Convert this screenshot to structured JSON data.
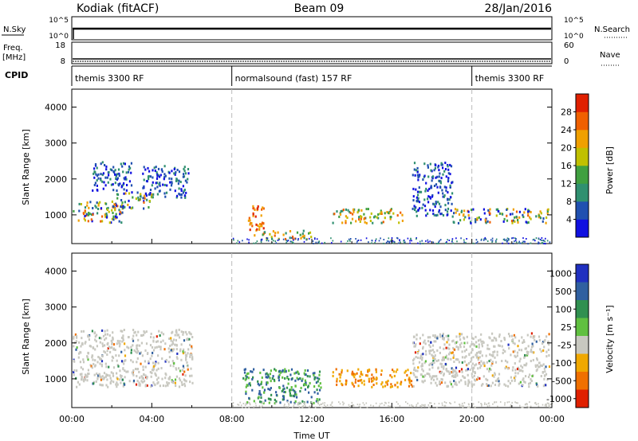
{
  "header": {
    "station": "Kodiak (fitACF)",
    "beam": "Beam 09",
    "date": "28/Jan/2016"
  },
  "strips": {
    "nsky_label": "N.Sky",
    "nsearch_label": "N.Search",
    "freq_label_1": "Freq.",
    "freq_label_2": "[MHz]",
    "nave_label": "Nave",
    "cpid_label": "CPID",
    "nsky_ticks": [
      "10^5",
      "10^0"
    ],
    "nsearch_ticks": [
      "10^5",
      "10^0"
    ],
    "freq_ticks": [
      "18",
      "8"
    ],
    "nave_ticks": [
      "60",
      "0"
    ]
  },
  "cpid_segments": [
    {
      "label": "themis 3300 RF",
      "start_h": 0,
      "end_h": 8
    },
    {
      "label": "normalsound (fast) 157 RF",
      "start_h": 8,
      "end_h": 20
    },
    {
      "label": "themis 3300 RF",
      "start_h": 20,
      "end_h": 24
    }
  ],
  "chart_data": [
    {
      "type": "heatmap",
      "panel": "power",
      "ylabel": "Slant Range [km]",
      "xlabel": "",
      "xlim": [
        0,
        24
      ],
      "ylim": [
        200,
        4500
      ],
      "yticks": [
        1000,
        2000,
        3000,
        4000
      ],
      "colorbar": {
        "label": "Power [dB]",
        "ticks": [
          "28",
          "24",
          "20",
          "16",
          "12",
          "8",
          "4"
        ],
        "tick_values": [
          28,
          24,
          20,
          16,
          12,
          8,
          4
        ],
        "range": [
          0,
          32
        ],
        "colors": [
          "#1010e0",
          "#2050b0",
          "#309070",
          "#40a040",
          "#c0c000",
          "#f0a000",
          "#f06000",
          "#e02000"
        ]
      },
      "regions": [
        {
          "t0": 0.0,
          "t1": 2.5,
          "r0": 800,
          "r1": 1400,
          "level": "mixed"
        },
        {
          "t0": 2.0,
          "t1": 4.0,
          "r0": 1200,
          "r1": 1700,
          "level": "mixed"
        },
        {
          "t0": 3.5,
          "t1": 5.8,
          "r0": 1500,
          "r1": 2400,
          "level": "low"
        },
        {
          "t0": 1.0,
          "t1": 3.0,
          "r0": 1700,
          "r1": 2500,
          "level": "low"
        },
        {
          "t0": 8.8,
          "t1": 9.6,
          "r0": 400,
          "r1": 1300,
          "level": "high"
        },
        {
          "t0": 9.5,
          "t1": 12.0,
          "r0": 350,
          "r1": 600,
          "level": "mid"
        },
        {
          "t0": 13.0,
          "t1": 16.5,
          "r0": 800,
          "r1": 1200,
          "level": "mid"
        },
        {
          "t0": 17.0,
          "t1": 19.0,
          "r0": 1000,
          "r1": 2500,
          "level": "low"
        },
        {
          "t0": 19.0,
          "t1": 24.0,
          "r0": 800,
          "r1": 1200,
          "level": "mixed"
        }
      ]
    },
    {
      "type": "heatmap",
      "panel": "velocity",
      "ylabel": "Slant Range [km]",
      "xlabel": "Time UT",
      "xlim": [
        0,
        24
      ],
      "ylim": [
        200,
        4500
      ],
      "yticks": [
        1000,
        2000,
        3000,
        4000
      ],
      "xticks": [
        "00:00",
        "04:00",
        "08:00",
        "12:00",
        "16:00",
        "20:00",
        "00:00"
      ],
      "colorbar": {
        "label": "Velocity [m s⁻¹]",
        "ticks": [
          "1000",
          "500",
          "100",
          "25",
          "-25",
          "-100",
          "-500",
          "-1000"
        ],
        "colors": [
          "#2030c0",
          "#3060a0",
          "#309050",
          "#60c040",
          "#c8c8c0",
          "#f0a800",
          "#f07000",
          "#e02000"
        ]
      },
      "regions": [
        {
          "t0": 0.0,
          "t1": 6.0,
          "r0": 800,
          "r1": 2400,
          "level": "ground"
        },
        {
          "t0": 8.5,
          "t1": 12.5,
          "r0": 350,
          "r1": 1300,
          "level": "positive"
        },
        {
          "t0": 13.0,
          "t1": 17.0,
          "r0": 800,
          "r1": 1300,
          "level": "negative"
        },
        {
          "t0": 17.0,
          "t1": 24.0,
          "r0": 800,
          "r1": 2300,
          "level": "ground"
        }
      ]
    }
  ]
}
